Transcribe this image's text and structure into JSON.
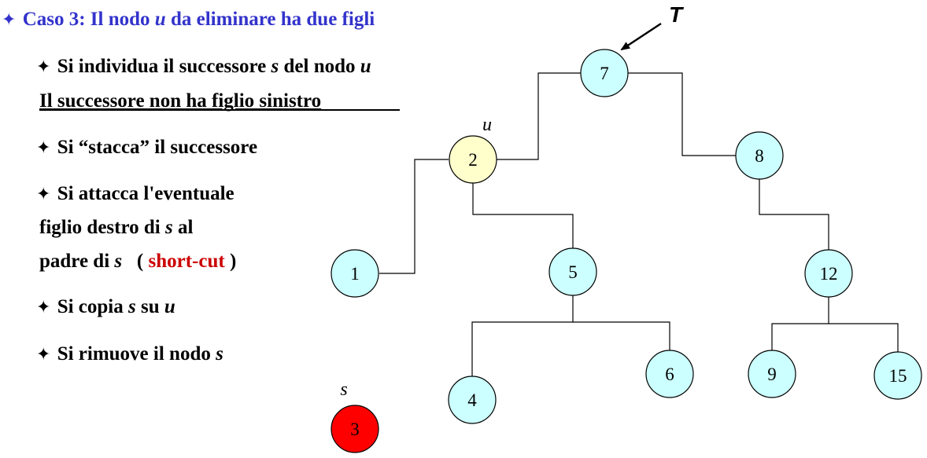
{
  "title": {
    "star": "✦",
    "before_u": "Caso 3: Il nodo ",
    "u": "u",
    "after_u": " da eliminare  ha due figli",
    "color": "#3333cc"
  },
  "bullets": {
    "star": "✦",
    "b1": {
      "part1": "Si individua il successore ",
      "s": "s",
      "part2": " del nodo ",
      "u": "u"
    },
    "b1_note": "Il successore non ha figlio sinistro",
    "b2": "Si “stacca” il successore",
    "b3": {
      "line1": "Si attacca l'eventuale",
      "line2_part1": "figlio destro di ",
      "line2_s": "s",
      "line2_part2": " al",
      "line3_part1": "padre di ",
      "line3_s": "s",
      "line3_part2": "  (",
      "line3_red": "short-cut",
      "line3_part3": ")"
    },
    "b4": {
      "part1": "Si copia ",
      "s": "s",
      "part2": " su ",
      "u": "u"
    },
    "b5": {
      "part1": "Si rimuove il nodo ",
      "s": "s"
    }
  },
  "tree": {
    "root_pointer_label": "T",
    "colors": {
      "normal": "#ccffff",
      "target": "#ffffcc",
      "successor": "#ff0000"
    },
    "nodes": [
      {
        "id": "n7",
        "key": "7",
        "state": "normal"
      },
      {
        "id": "n2",
        "key": "2",
        "state": "target",
        "tag": "u"
      },
      {
        "id": "n8",
        "key": "8",
        "state": "normal"
      },
      {
        "id": "n1",
        "key": "1",
        "state": "normal"
      },
      {
        "id": "n5",
        "key": "5",
        "state": "normal"
      },
      {
        "id": "n12",
        "key": "12",
        "state": "normal"
      },
      {
        "id": "n4",
        "key": "4",
        "state": "normal"
      },
      {
        "id": "n6",
        "key": "6",
        "state": "normal"
      },
      {
        "id": "n9",
        "key": "9",
        "state": "normal"
      },
      {
        "id": "n15",
        "key": "15",
        "state": "normal"
      },
      {
        "id": "n3",
        "key": "3",
        "state": "successor",
        "tag": "s"
      }
    ],
    "edges": [
      {
        "parent": "7",
        "child": "2"
      },
      {
        "parent": "7",
        "child": "8"
      },
      {
        "parent": "2",
        "child": "1"
      },
      {
        "parent": "2",
        "child": "5"
      },
      {
        "parent": "5",
        "child": "4"
      },
      {
        "parent": "5",
        "child": "6"
      },
      {
        "parent": "8",
        "child": "12"
      },
      {
        "parent": "12",
        "child": "9"
      },
      {
        "parent": "12",
        "child": "15"
      }
    ]
  }
}
